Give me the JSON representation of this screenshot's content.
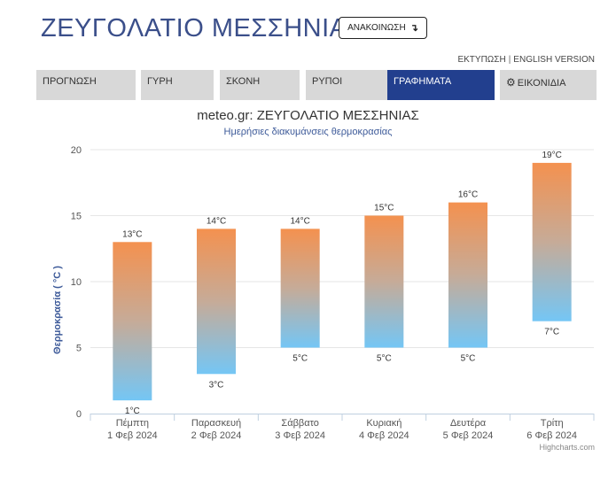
{
  "header": {
    "station": "ΖΕΥΓΟΛΑΤΙΟ ΜΕΣΣΗΝΙΑΣ",
    "announce_label": "ΑΝΑΚΟΙΝΩΣΗ",
    "announce_icon": "arrow-down-icon",
    "print_link": "ΕΚΤΥΠΩΣΗ",
    "separator": "|",
    "english_link": "ENGLISH VERSION"
  },
  "tabs": [
    {
      "label": "ΠΡΟΓΝΩΣΗ",
      "active": false
    },
    {
      "label": "ΓΥΡΗ",
      "active": false
    },
    {
      "label": "ΣΚΟΝΗ",
      "active": false
    },
    {
      "label": "ΡΥΠΟΙ",
      "active": false
    },
    {
      "label": "ΓΡΑΦΗΜΑΤΑ",
      "active": true
    },
    {
      "label": "ΕΙΚΟΝΙΔΙΑ",
      "active": false,
      "icon": "gear-icon"
    }
  ],
  "colors": {
    "brand": "#3b4f8a",
    "active_tab": "#223f8e",
    "bar_top": "#f4914f",
    "bar_bottom": "#74c6f5"
  },
  "chart_data": {
    "type": "bar",
    "subtype": "range",
    "title": "meteo.gr: ΖΕΥΓΟΛΑΤΙΟ ΜΕΣΣΗΝΙΑΣ",
    "subtitle": "Ημερήσιες διακυμάνσεις θερμοκρασίας",
    "xlabel": "",
    "ylabel": "Θερμοκρασία ( °C )",
    "ylim": [
      0,
      20
    ],
    "yticks": [
      0,
      5,
      10,
      15,
      20
    ],
    "grid": true,
    "unit_suffix": "°C",
    "categories": [
      {
        "day": "Πέμπτη",
        "date": "1 Φεβ 2024"
      },
      {
        "day": "Παρασκευή",
        "date": "2 Φεβ 2024"
      },
      {
        "day": "Σάββατο",
        "date": "3 Φεβ 2024"
      },
      {
        "day": "Κυριακή",
        "date": "4 Φεβ 2024"
      },
      {
        "day": "Δευτέρα",
        "date": "5 Φεβ 2024"
      },
      {
        "day": "Τρίτη",
        "date": "6 Φεβ 2024"
      }
    ],
    "low": [
      1,
      3,
      5,
      5,
      5,
      7
    ],
    "high": [
      13,
      14,
      14,
      15,
      16,
      19
    ],
    "credits": "Highcharts.com"
  }
}
